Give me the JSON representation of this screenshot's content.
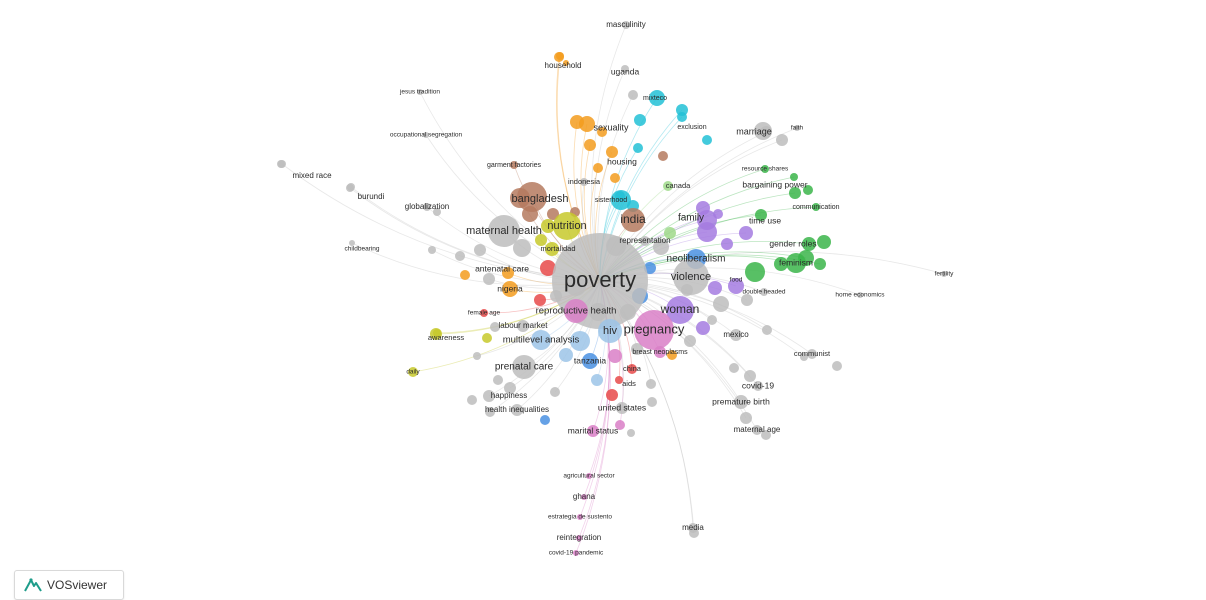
{
  "colors": {
    "gray": "#bdbdbd",
    "orange": "#f39c1f",
    "cyan": "#22c1d6",
    "brown": "#b57a5f",
    "yellow": "#c7c92c",
    "purple": "#a57be0",
    "green": "#3bb54a",
    "blue": "#4a90e2",
    "pink": "#d97fc7",
    "red": "#e84a4a",
    "lightblue": "#9cc4e8",
    "lightgreen": "#9fd98a"
  },
  "labels": [
    "masculinity",
    "household",
    "uganda",
    "jesus tradition",
    "mixteco",
    "exclusion",
    "sexuality",
    "occupational segregation",
    "marriage",
    "faith",
    "housing",
    "garment factories",
    "resource shares",
    "bargaining power",
    "indonesia",
    "canada",
    "mixed race",
    "burundi",
    "globalization",
    "bangladesh",
    "sisterhood",
    "communication",
    "india",
    "family",
    "time use",
    "nutrition",
    "maternal health",
    "mortalidad",
    "representation",
    "gender roles",
    "childbearing",
    "neoliberalism",
    "feminism",
    "antenatal care",
    "poverty",
    "violence",
    "food",
    "nigeria",
    "double headed",
    "home economics",
    "fertility",
    "female age",
    "reproductive health",
    "woman",
    "labour market",
    "pregnancy",
    "hiv",
    "mexico",
    "awareness",
    "multilevel analysis",
    "breast neoplasms",
    "communist",
    "tanzania",
    "prenatal care",
    "china",
    "daily",
    "aids",
    "covid-19",
    "happiness",
    "premature birth",
    "health inequalities",
    "united states",
    "maternal age",
    "marital status",
    "agricultural sector",
    "ghana",
    "estrategia de sustento",
    "media",
    "reintegration",
    "covid-19 pandemic"
  ],
  "branding": {
    "name": "VOSviewer",
    "logo_icon": "vosviewer-logo-icon"
  }
}
